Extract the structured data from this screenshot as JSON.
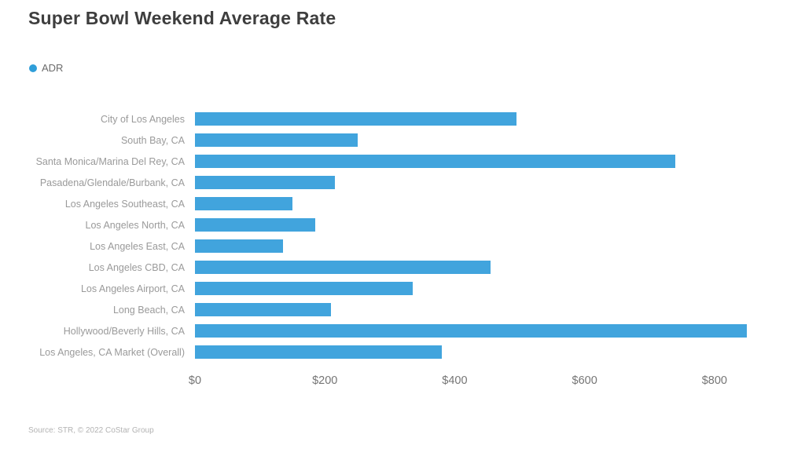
{
  "title": "Super Bowl Weekend Average Rate",
  "legend": {
    "label": "ADR",
    "dot_color": "#2f9ed9"
  },
  "source": "Source: STR, © 2022 CoStar Group",
  "colors": {
    "bar": "#41a4dd",
    "title_text": "#3e3e3e",
    "category_text": "#9a9a9a",
    "tick_text": "#757575",
    "source_text": "#b3b3b3",
    "background": "#ffffff"
  },
  "chart_data": {
    "type": "bar",
    "orientation": "horizontal",
    "title": "Super Bowl Weekend Average Rate",
    "series_name": "ADR",
    "categories": [
      "City of Los Angeles",
      "South Bay, CA",
      "Santa Monica/Marina Del Rey, CA",
      "Pasadena/Glendale/Burbank, CA",
      "Los Angeles Southeast, CA",
      "Los Angeles North, CA",
      "Los Angeles East, CA",
      "Los Angeles CBD, CA",
      "Los Angeles Airport, CA",
      "Long Beach, CA",
      "Hollywood/Beverly Hills, CA",
      "Los Angeles, CA Market (Overall)"
    ],
    "values": [
      495,
      250,
      740,
      215,
      150,
      185,
      135,
      455,
      335,
      210,
      850,
      380
    ],
    "unit": "USD",
    "xlabel": "",
    "ylabel": "",
    "x_ticks": [
      0,
      200,
      400,
      600,
      800
    ],
    "x_tick_labels": [
      "$0",
      "$200",
      "$400",
      "$600",
      "$800"
    ],
    "xlim": [
      0,
      920
    ],
    "grid": false,
    "legend_position": "top-left"
  }
}
